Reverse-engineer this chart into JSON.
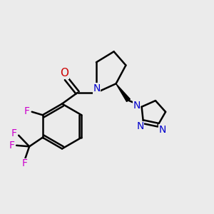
{
  "bg_color": "#ebebeb",
  "bond_color": "#000000",
  "nitrogen_color": "#0000cc",
  "oxygen_color": "#cc0000",
  "fluorine_color": "#cc00cc",
  "line_width": 1.8,
  "figsize": [
    3.0,
    3.0
  ],
  "dpi": 100,
  "xlim": [
    0,
    10
  ],
  "ylim": [
    0,
    10
  ]
}
